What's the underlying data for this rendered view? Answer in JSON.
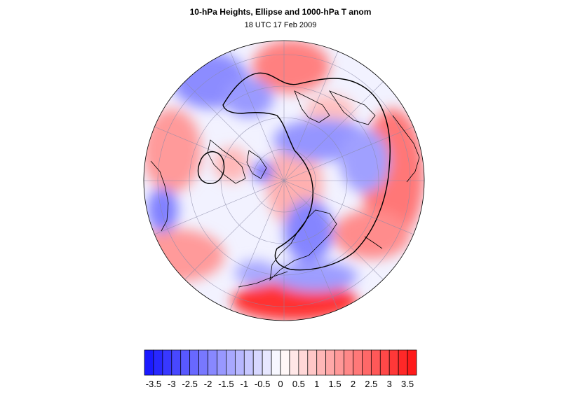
{
  "title": "10-hPa Heights, Ellipse and 1000-hPa T anom",
  "subtitle": "18 UTC 17 Feb 2009",
  "colors": {
    "negative": "#1a1aff",
    "positive": "#ff1a1a",
    "neutral": "#ffffff",
    "coastline": "#000000",
    "graticule": "#8a8aa8"
  },
  "colorbar": {
    "levels": [
      -3.75,
      -3.5,
      -3.25,
      -3,
      -2.75,
      -2.5,
      -2.25,
      -2,
      -1.75,
      -1.5,
      -1.25,
      -1,
      -0.75,
      -0.5,
      -0.25,
      0,
      0.25,
      0.5,
      0.75,
      1,
      1.25,
      1.5,
      1.75,
      2,
      2.25,
      2.5,
      2.75,
      3,
      3.25,
      3.5,
      3.75
    ],
    "labels": [
      "-3.5",
      "-3",
      "-2.5",
      "-2",
      "-1.5",
      "-1",
      "-0.5",
      "0",
      "0.5",
      "1",
      "1.5",
      "2",
      "2.5",
      "3",
      "3.5"
    ]
  }
}
